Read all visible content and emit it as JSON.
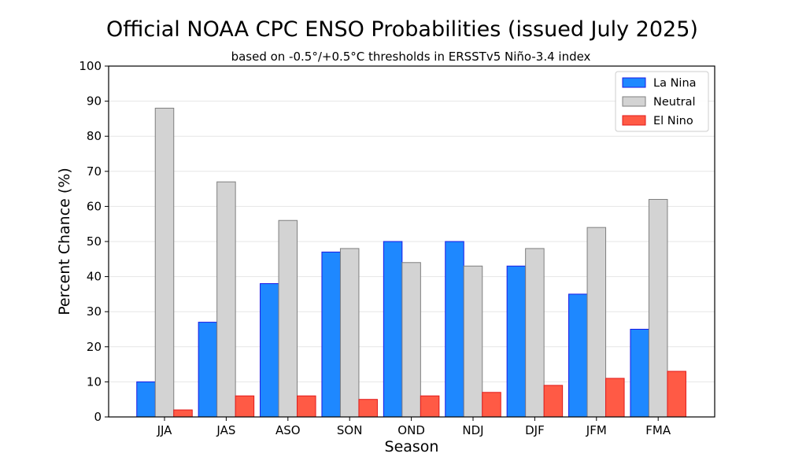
{
  "chart_data": {
    "type": "bar",
    "title": "Official NOAA CPC ENSO Probabilities (issued July 2025)",
    "subtitle": "based on -0.5°/+0.5°C thresholds in ERSSTv5 Niño-3.4 index",
    "xlabel": "Season",
    "ylabel": "Percent Chance (%)",
    "ylim": [
      0,
      100
    ],
    "yticks": [
      0,
      10,
      20,
      30,
      40,
      50,
      60,
      70,
      80,
      90,
      100
    ],
    "grid": true,
    "legend_position": "top-right",
    "categories": [
      "JJA",
      "JAS",
      "ASO",
      "SON",
      "OND",
      "NDJ",
      "DJF",
      "JFM",
      "FMA"
    ],
    "series": [
      {
        "name": "La Nina",
        "color": "#1e88ff",
        "edge": "#1a1ae6",
        "values": [
          10,
          27,
          38,
          47,
          50,
          50,
          43,
          35,
          25
        ]
      },
      {
        "name": "Neutral",
        "color": "#d3d3d3",
        "edge": "#7f7f7f",
        "values": [
          88,
          67,
          56,
          48,
          44,
          43,
          48,
          54,
          62
        ]
      },
      {
        "name": "El Nino",
        "color": "#ff5a45",
        "edge": "#e21a1a",
        "values": [
          2,
          6,
          6,
          5,
          6,
          7,
          9,
          11,
          13
        ]
      }
    ]
  }
}
